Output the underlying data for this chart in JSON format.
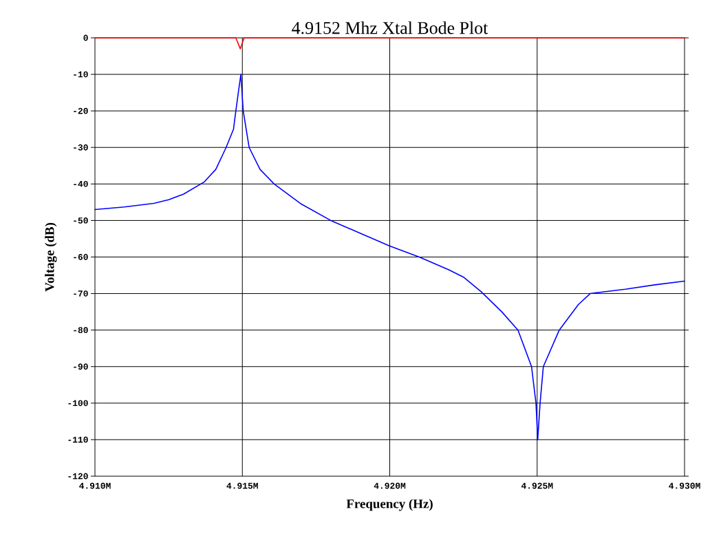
{
  "chart_data": {
    "type": "line",
    "title": "4.9152 Mhz Xtal Bode Plot",
    "xlabel": "Frequency (Hz)",
    "ylabel": "Voltage (dB)",
    "xlim": [
      4.91,
      4.93
    ],
    "ylim": [
      -120,
      0
    ],
    "xticks": [
      {
        "value": 4.91,
        "label": "4.910M"
      },
      {
        "value": 4.915,
        "label": "4.915M"
      },
      {
        "value": 4.92,
        "label": "4.920M"
      },
      {
        "value": 4.925,
        "label": "4.925M"
      },
      {
        "value": 4.93,
        "label": "4.930M"
      }
    ],
    "yticks": [
      0,
      -10,
      -20,
      -30,
      -40,
      -50,
      -60,
      -70,
      -80,
      -90,
      -100,
      -110,
      -120
    ],
    "grid": true,
    "marker": "none",
    "line_style": "solid",
    "series": [
      {
        "color": "#ff0000",
        "x": [
          4.91,
          4.91478,
          4.91493,
          4.91506,
          4.93
        ],
        "values": [
          0,
          0,
          -3,
          0,
          0
        ]
      },
      {
        "color": "#0000ff",
        "x": [
          4.91,
          4.911,
          4.912,
          4.9125,
          4.913,
          4.9137,
          4.9141,
          4.91445,
          4.9147,
          4.91478,
          4.91488,
          4.91495,
          4.91503,
          4.91513,
          4.91523,
          4.9156,
          4.91608,
          4.917,
          4.918,
          4.919,
          4.92,
          4.921,
          4.922,
          4.9225,
          4.9231,
          4.9238,
          4.92435,
          4.92481,
          4.92496,
          4.92502,
          4.9251,
          4.92521,
          4.92575,
          4.9264,
          4.9268,
          4.928,
          4.929,
          4.93
        ],
        "values": [
          -47,
          -46.3,
          -45.3,
          -44.3,
          -42.8,
          -39.5,
          -36,
          -30,
          -25,
          -20,
          -14,
          -10,
          -20,
          -25,
          -30,
          -36,
          -40,
          -45.5,
          -50,
          -53.5,
          -57,
          -60,
          -63.5,
          -65.5,
          -69.5,
          -75,
          -80,
          -90,
          -100,
          -110,
          -100,
          -90,
          -80,
          -73,
          -70,
          -68.8,
          -67.6,
          -66.6
        ]
      }
    ]
  }
}
